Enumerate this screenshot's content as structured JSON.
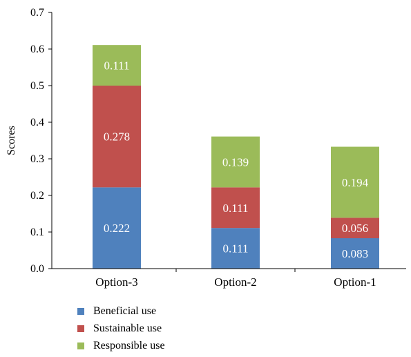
{
  "chart_data": {
    "type": "bar",
    "stacked": true,
    "categories": [
      "Option-3",
      "Option-2",
      "Option-1"
    ],
    "series": [
      {
        "name": "Beneficial use",
        "color": "#4f81bd",
        "values": [
          0.222,
          0.111,
          0.083
        ],
        "labels": [
          "0.222",
          "0.111",
          "0.083"
        ]
      },
      {
        "name": "Sustainable use",
        "color": "#c0504d",
        "values": [
          0.278,
          0.111,
          0.056
        ],
        "labels": [
          "0.278",
          "0.111",
          "0.056"
        ]
      },
      {
        "name": "Responsible use",
        "color": "#9bbb59",
        "values": [
          0.111,
          0.139,
          0.194
        ],
        "labels": [
          "0.111",
          "0.139",
          "0.194"
        ]
      }
    ],
    "ylabel": "Scores",
    "xlabel": "",
    "ylim": [
      0,
      0.7
    ],
    "yticks": [
      "0.0",
      "0.1",
      "0.2",
      "0.3",
      "0.4",
      "0.5",
      "0.6",
      "0.7"
    ],
    "grid": false,
    "legend_position": "bottom-left"
  }
}
